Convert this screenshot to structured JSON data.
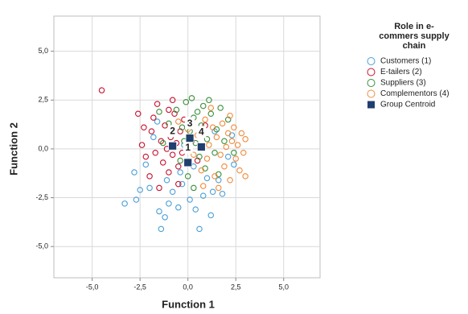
{
  "chart_data": {
    "type": "scatter",
    "xlabel": "Function 1",
    "ylabel": "Function 2",
    "legend_title": "Role in e-commers supply chain",
    "legend": "right",
    "grid": true,
    "xlim": [
      -7,
      6.9
    ],
    "ylim": [
      -6.6,
      6.8
    ],
    "xticks": [
      {
        "value": -5,
        "label": "-5,0"
      },
      {
        "value": -2.5,
        "label": "-2,5"
      },
      {
        "value": 0,
        "label": "0,0"
      },
      {
        "value": 2.5,
        "label": "2,5"
      },
      {
        "value": 5,
        "label": "5,0"
      }
    ],
    "yticks": [
      {
        "value": -5,
        "label": "-5,0"
      },
      {
        "value": -2.5,
        "label": "-2,5"
      },
      {
        "value": 0,
        "label": "0,0"
      },
      {
        "value": 2.5,
        "label": "2,5"
      },
      {
        "value": 5,
        "label": "5,0"
      }
    ],
    "series": [
      {
        "name": "Customers (1)",
        "color": "#4a9fd8",
        "x": [
          -3.3,
          -2.7,
          -2.5,
          -2.0,
          -1.5,
          -1.4,
          -1.2,
          -1.0,
          -0.8,
          -0.5,
          -0.3,
          0.1,
          0.4,
          0.8,
          1.3,
          1.6,
          1.2,
          1.8,
          -2.8,
          -2.2,
          -1.8,
          -1.6,
          -0.4,
          0.3,
          2.1,
          2.3,
          1.0,
          -1.1,
          0.6,
          2.4,
          -0.2,
          1.4
        ],
        "values": [
          -2.8,
          -2.6,
          -2.1,
          -2.0,
          -3.2,
          -4.1,
          -3.5,
          -2.8,
          -2.2,
          -3.0,
          -1.8,
          -2.6,
          -3.1,
          -2.4,
          -2.2,
          -1.6,
          -3.4,
          -2.3,
          -1.2,
          -0.8,
          0.6,
          1.4,
          -1.2,
          -0.9,
          -0.4,
          0.7,
          -1.5,
          -1.6,
          -4.1,
          -0.8,
          0.2,
          0.9
        ]
      },
      {
        "name": "E-tailers (2)",
        "color": "#c8102e",
        "x": [
          -4.5,
          -2.6,
          -2.4,
          -2.2,
          -1.9,
          -1.7,
          -1.6,
          -1.4,
          -1.3,
          -1.2,
          -1.1,
          -1.0,
          -0.9,
          -0.8,
          -0.7,
          -0.6,
          -0.5,
          -0.4,
          -0.3,
          -0.2,
          -2.0,
          -1.5,
          -0.8,
          -1.8,
          0.2,
          0.5,
          -2.3,
          -1.0,
          -0.5,
          0.9
        ],
        "values": [
          3.0,
          1.8,
          0.2,
          -0.4,
          0.9,
          -0.2,
          2.3,
          0.4,
          -0.7,
          1.2,
          0.0,
          -1.2,
          0.6,
          -0.3,
          1.8,
          0.3,
          -0.9,
          0.9,
          -0.2,
          1.5,
          -1.4,
          -2.0,
          2.5,
          1.6,
          0.4,
          -0.6,
          1.1,
          2.0,
          -1.8,
          1.2
        ]
      },
      {
        "name": "Suppliers (3)",
        "color": "#3a8f3a",
        "x": [
          -1.5,
          -1.0,
          -0.6,
          -0.3,
          -0.1,
          0.1,
          0.2,
          0.3,
          0.4,
          0.5,
          0.6,
          0.7,
          0.8,
          1.0,
          1.2,
          1.4,
          1.5,
          1.7,
          -0.4,
          0.0,
          -0.8,
          1.9,
          2.1,
          0.9,
          -1.3,
          0.3,
          1.1,
          -0.2,
          2.4,
          1.6
        ],
        "values": [
          1.9,
          1.3,
          2.0,
          1.1,
          2.4,
          0.9,
          2.6,
          1.6,
          0.3,
          1.9,
          -0.4,
          1.2,
          2.2,
          0.5,
          1.8,
          -0.2,
          1.0,
          2.1,
          -0.6,
          -1.4,
          0.8,
          0.4,
          1.5,
          -1.0,
          0.3,
          -2.0,
          2.5,
          0.4,
          -0.2,
          -1.3
        ]
      },
      {
        "name": "Complementors (4)",
        "color": "#f08a3c",
        "x": [
          -0.5,
          0.0,
          0.3,
          0.5,
          0.7,
          0.9,
          1.0,
          1.1,
          1.3,
          1.4,
          1.5,
          1.7,
          1.8,
          1.9,
          2.0,
          2.1,
          2.2,
          2.3,
          2.4,
          2.5,
          2.6,
          2.7,
          2.8,
          2.9,
          3.0,
          3.0,
          1.2,
          0.8,
          2.2,
          1.6
        ],
        "values": [
          1.4,
          1.0,
          -0.3,
          0.7,
          -1.1,
          1.5,
          -0.5,
          0.2,
          1.1,
          -1.4,
          0.6,
          -0.3,
          1.3,
          -0.9,
          0.1,
          0.8,
          -1.6,
          0.4,
          1.1,
          -0.5,
          0.2,
          -1.1,
          0.8,
          -0.2,
          -1.4,
          0.5,
          2.1,
          -1.9,
          1.7,
          -2.0
        ]
      },
      {
        "name": "Group Centroid",
        "color": "#1f3f6e",
        "x": [
          0.0,
          -0.8,
          0.1,
          0.7
        ],
        "values": [
          -0.7,
          0.15,
          0.55,
          0.1
        ],
        "labels": [
          "1",
          "2",
          "3",
          "4"
        ]
      }
    ]
  }
}
